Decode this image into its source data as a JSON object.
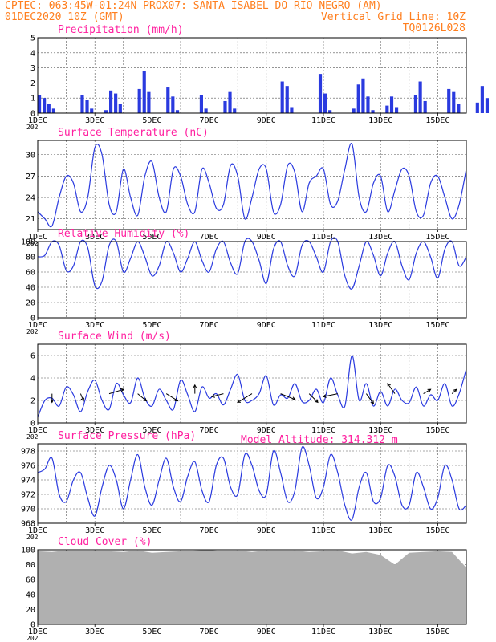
{
  "header": {
    "line1_left": "CPTEC:  063:45W-01:24N  PROX07: SANTA ISABEL DO RIO NEGRO (AM)",
    "line2_left": "01DEC2020 10Z (GMT)",
    "line2_right": "Vertical Grid Line: 10Z",
    "line3_right": "TQ0126L028",
    "model_altitude": "Model Altitude: 314.312 m"
  },
  "colors": {
    "header": "#ff7f1f",
    "title": "#ff1f9f",
    "series": "#2a3adf",
    "cloud": "#b0b0b0",
    "grid": "#555555"
  },
  "x_ticks": [
    "1DEC",
    "3DEC",
    "5DEC",
    "7DEC",
    "9DEC",
    "11DEC",
    "13DEC",
    "15DEC"
  ],
  "year_fragment": "202",
  "chart_data": [
    {
      "type": "bar",
      "title": "Precipitation (mm/h)",
      "x_days": [
        0.0,
        0.17,
        0.33,
        0.5,
        0.67,
        0.83,
        1.0,
        1.17,
        1.33,
        1.5,
        1.67,
        1.83,
        2.0,
        2.17,
        2.33,
        2.5,
        2.67,
        2.83,
        3.0,
        3.17,
        3.33,
        3.5,
        3.67,
        3.83,
        4.0,
        4.17,
        4.33,
        4.5,
        4.67,
        4.83,
        5.0,
        5.17,
        5.33,
        5.5,
        5.67,
        5.83,
        6.0,
        6.17,
        6.33,
        6.5,
        6.67,
        6.83,
        7.0,
        7.17,
        7.33,
        7.5,
        7.67,
        7.83,
        8.0,
        8.17,
        8.33,
        8.5,
        8.67,
        8.83,
        9.0,
        9.17,
        9.33,
        9.5,
        9.67,
        9.83,
        10.0,
        10.17,
        10.33,
        10.5,
        10.67,
        10.83,
        11.0,
        11.17,
        11.33,
        11.5,
        11.67,
        11.83,
        12.0,
        12.17,
        12.33,
        12.5,
        12.67,
        12.83,
        13.0,
        13.17,
        13.33,
        13.5,
        13.67,
        13.83,
        14.0,
        14.17,
        14.33,
        14.5,
        14.67,
        14.83,
        15.0,
        15.17,
        15.33,
        15.5,
        15.67,
        15.83
      ],
      "values": [
        1.2,
        1.0,
        0.6,
        0.3,
        0.0,
        0.0,
        0.0,
        0.0,
        0.0,
        1.2,
        0.9,
        0.3,
        0.0,
        0.0,
        0.2,
        1.5,
        1.3,
        0.6,
        0.0,
        0.0,
        0.0,
        1.6,
        2.8,
        1.4,
        0.0,
        0.0,
        0.0,
        1.7,
        1.1,
        0.2,
        0.0,
        0.0,
        0.0,
        0.0,
        1.2,
        0.3,
        0.0,
        0.0,
        0.0,
        0.8,
        1.4,
        0.3,
        0.0,
        0.0,
        0.0,
        0.0,
        0.0,
        0.0,
        0.0,
        0.0,
        0.0,
        2.1,
        1.8,
        0.4,
        0.0,
        0.0,
        0.0,
        0.0,
        0.0,
        2.6,
        1.3,
        0.2,
        0.0,
        0.0,
        0.0,
        0.0,
        0.3,
        1.9,
        2.3,
        1.1,
        0.2,
        0.0,
        0.0,
        0.5,
        1.1,
        0.4,
        0.0,
        0.0,
        0.0,
        1.2,
        2.1,
        0.8,
        0.0,
        0.0,
        0.0,
        0.0,
        1.6,
        1.4,
        0.6,
        0.0,
        0.0,
        0.0,
        0.7,
        1.8,
        1.0,
        0.0
      ],
      "ylim": [
        0,
        5
      ],
      "yticks": [
        "0",
        "1",
        "2",
        "3",
        "4",
        "5"
      ]
    },
    {
      "type": "line",
      "title": "Surface Temperature (nC)",
      "x_days": [
        0.0,
        0.25,
        0.5,
        0.75,
        1.0,
        1.25,
        1.5,
        1.75,
        2.0,
        2.25,
        2.5,
        2.75,
        3.0,
        3.25,
        3.5,
        3.75,
        4.0,
        4.25,
        4.5,
        4.75,
        5.0,
        5.25,
        5.5,
        5.75,
        6.0,
        6.25,
        6.5,
        6.75,
        7.0,
        7.25,
        7.5,
        7.75,
        8.0,
        8.25,
        8.5,
        8.75,
        9.0,
        9.25,
        9.5,
        9.75,
        10.0,
        10.25,
        10.5,
        10.75,
        11.0,
        11.25,
        11.5,
        11.75,
        12.0,
        12.25,
        12.5,
        12.75,
        13.0,
        13.25,
        13.5,
        13.75,
        14.0,
        14.25,
        14.5,
        14.75,
        15.0
      ],
      "values": [
        22.0,
        21.0,
        20.0,
        24.0,
        27.0,
        26.0,
        22.0,
        24.0,
        31.0,
        30.0,
        23.0,
        22.0,
        28.0,
        24.0,
        21.5,
        27.0,
        29.0,
        24.0,
        22.0,
        28.0,
        27.0,
        23.0,
        22.0,
        28.0,
        26.0,
        22.5,
        23.0,
        28.5,
        27.0,
        21.0,
        24.0,
        28.0,
        28.0,
        22.0,
        23.0,
        28.5,
        27.5,
        22.0,
        26.0,
        27.0,
        28.0,
        23.0,
        23.5,
        28.0,
        31.5,
        24.0,
        22.0,
        26.0,
        27.0,
        22.0,
        25.0,
        28.0,
        27.0,
        22.0,
        21.5,
        26.0,
        27.0,
        24.0,
        21.0,
        23.0,
        28.0
      ],
      "ylim": [
        19.5,
        32
      ],
      "yticks": [
        "21",
        "24",
        "27",
        "30"
      ]
    },
    {
      "type": "line",
      "title": "Relative Humidity (%)",
      "x_days": [
        0.0,
        0.25,
        0.5,
        0.75,
        1.0,
        1.25,
        1.5,
        1.75,
        2.0,
        2.25,
        2.5,
        2.75,
        3.0,
        3.25,
        3.5,
        3.75,
        4.0,
        4.25,
        4.5,
        4.75,
        5.0,
        5.25,
        5.5,
        5.75,
        6.0,
        6.25,
        6.5,
        6.75,
        7.0,
        7.25,
        7.5,
        7.75,
        8.0,
        8.25,
        8.5,
        8.75,
        9.0,
        9.25,
        9.5,
        9.75,
        10.0,
        10.25,
        10.5,
        10.75,
        11.0,
        11.25,
        11.5,
        11.75,
        12.0,
        12.25,
        12.5,
        12.75,
        13.0,
        13.25,
        13.5,
        13.75,
        14.0,
        14.25,
        14.5,
        14.75,
        15.0
      ],
      "values": [
        80.0,
        82.0,
        100.0,
        95.0,
        62.0,
        68.0,
        100.0,
        92.0,
        42.0,
        48.0,
        95.0,
        100.0,
        60.0,
        78.0,
        100.0,
        80.0,
        55.0,
        68.0,
        100.0,
        85.0,
        60.0,
        78.0,
        100.0,
        75.0,
        60.0,
        90.0,
        100.0,
        72.0,
        58.0,
        100.0,
        100.0,
        75.0,
        45.0,
        90.0,
        100.0,
        68.0,
        55.0,
        95.0,
        100.0,
        80.0,
        60.0,
        100.0,
        100.0,
        55.0,
        38.0,
        68.0,
        100.0,
        82.0,
        55.0,
        85.0,
        100.0,
        68.0,
        50.0,
        85.0,
        100.0,
        80.0,
        52.0,
        90.0,
        100.0,
        68.0,
        80.0
      ],
      "ylim": [
        0,
        100
      ],
      "yticks": [
        "0",
        "20",
        "40",
        "60",
        "80",
        "100"
      ]
    },
    {
      "type": "line",
      "title": "Surface Wind (m/s)",
      "x_days": [
        0.0,
        0.25,
        0.5,
        0.75,
        1.0,
        1.25,
        1.5,
        1.75,
        2.0,
        2.25,
        2.5,
        2.75,
        3.0,
        3.25,
        3.5,
        3.75,
        4.0,
        4.25,
        4.5,
        4.75,
        5.0,
        5.25,
        5.5,
        5.75,
        6.0,
        6.25,
        6.5,
        6.75,
        7.0,
        7.25,
        7.5,
        7.75,
        8.0,
        8.25,
        8.5,
        8.75,
        9.0,
        9.25,
        9.5,
        9.75,
        10.0,
        10.25,
        10.5,
        10.75,
        11.0,
        11.25,
        11.5,
        11.75,
        12.0,
        12.25,
        12.5,
        12.75,
        13.0,
        13.25,
        13.5,
        13.75,
        14.0,
        14.25,
        14.5,
        14.75,
        15.0
      ],
      "values": [
        0.5,
        2.0,
        2.2,
        1.5,
        3.2,
        2.5,
        1.0,
        2.8,
        3.8,
        2.0,
        1.2,
        3.5,
        2.5,
        1.8,
        4.0,
        2.2,
        1.5,
        3.0,
        2.0,
        1.2,
        3.8,
        2.5,
        1.0,
        3.2,
        2.2,
        2.6,
        1.6,
        3.0,
        4.3,
        2.0,
        2.0,
        2.6,
        4.2,
        1.6,
        2.5,
        2.2,
        3.5,
        1.9,
        2.0,
        3.0,
        1.8,
        4.0,
        2.5,
        1.5,
        6.0,
        2.0,
        3.5,
        1.5,
        2.8,
        1.5,
        3.0,
        2.0,
        1.8,
        3.2,
        1.5,
        2.5,
        2.0,
        3.5,
        1.5,
        2.6,
        4.8
      ],
      "ylim": [
        0,
        7
      ],
      "yticks": [
        "0",
        "2",
        "4",
        "6"
      ],
      "arrow_days": [
        0.5,
        1.5,
        2.5,
        3.5,
        4.5,
        5.5,
        6.5,
        7.5,
        8.5,
        9.5,
        10.5,
        11.5,
        12.5,
        13.5,
        14.5
      ],
      "arrow_u": [
        0.0,
        0.4,
        2.0,
        1.2,
        1.6,
        0.0,
        -1.6,
        -2.0,
        2.0,
        1.2,
        -2.0,
        1.0,
        -1.0,
        1.0,
        0.6
      ],
      "arrow_v": [
        -1.2,
        -1.0,
        0.6,
        -1.0,
        -1.0,
        1.2,
        -0.4,
        -1.2,
        -0.8,
        -1.2,
        -0.4,
        -1.4,
        1.4,
        0.6,
        0.6
      ]
    },
    {
      "type": "line",
      "title": "Surface Pressure (hPa)",
      "x_days": [
        0.0,
        0.25,
        0.5,
        0.75,
        1.0,
        1.25,
        1.5,
        1.75,
        2.0,
        2.25,
        2.5,
        2.75,
        3.0,
        3.25,
        3.5,
        3.75,
        4.0,
        4.25,
        4.5,
        4.75,
        5.0,
        5.25,
        5.5,
        5.75,
        6.0,
        6.25,
        6.5,
        6.75,
        7.0,
        7.25,
        7.5,
        7.75,
        8.0,
        8.25,
        8.5,
        8.75,
        9.0,
        9.25,
        9.5,
        9.75,
        10.0,
        10.25,
        10.5,
        10.75,
        11.0,
        11.25,
        11.5,
        11.75,
        12.0,
        12.25,
        12.5,
        12.75,
        13.0,
        13.25,
        13.5,
        13.75,
        14.0,
        14.25,
        14.5,
        14.75,
        15.0
      ],
      "values": [
        975.0,
        975.5,
        977.0,
        972.0,
        971.0,
        974.0,
        975.0,
        971.5,
        969.0,
        973.0,
        976.0,
        974.0,
        970.0,
        974.0,
        977.5,
        973.0,
        970.5,
        974.0,
        977.0,
        973.0,
        971.0,
        974.5,
        976.5,
        972.5,
        971.0,
        976.0,
        977.0,
        973.0,
        972.0,
        977.5,
        976.0,
        972.5,
        972.0,
        978.0,
        975.0,
        971.0,
        972.5,
        978.5,
        976.0,
        971.5,
        973.0,
        977.5,
        975.0,
        970.5,
        968.5,
        973.0,
        975.0,
        971.0,
        971.5,
        976.0,
        974.5,
        970.5,
        970.5,
        975.0,
        973.0,
        970.0,
        971.5,
        976.0,
        974.0,
        970.0,
        970.5
      ],
      "ylim": [
        968,
        979
      ],
      "yticks": [
        "968",
        "970",
        "972",
        "974",
        "976",
        "978"
      ]
    },
    {
      "type": "area",
      "title": "Cloud Cover (%)",
      "x_days": [
        0.0,
        0.5,
        1.0,
        1.5,
        2.0,
        2.5,
        3.0,
        3.5,
        4.0,
        4.5,
        5.0,
        5.5,
        6.0,
        6.5,
        7.0,
        7.5,
        8.0,
        8.5,
        9.0,
        9.5,
        10.0,
        10.5,
        11.0,
        11.5,
        12.0,
        12.5,
        13.0,
        13.5,
        14.0,
        14.5,
        15.0
      ],
      "values": [
        98,
        97,
        99,
        98,
        99,
        98,
        97,
        99,
        96,
        97,
        98,
        99,
        100,
        98,
        99,
        97,
        99,
        98,
        99,
        97,
        98,
        99,
        95,
        97,
        93,
        80,
        96,
        97,
        98,
        97,
        76
      ],
      "ylim": [
        0,
        100
      ],
      "yticks": [
        "0",
        "20",
        "40",
        "60",
        "80",
        "100"
      ]
    }
  ]
}
